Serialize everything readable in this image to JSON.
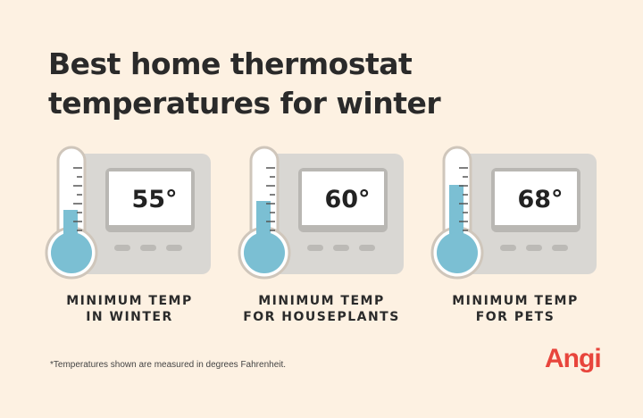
{
  "title_line1": "Best home thermostat",
  "title_line2": "temperatures for winter",
  "cards": [
    {
      "temperature": "55°",
      "label_line1": "MINIMUM TEMP",
      "label_line2": "IN WINTER",
      "fill_level": 0.4
    },
    {
      "temperature": "60°",
      "label_line1": "MINIMUM TEMP",
      "label_line2": "FOR HOUSEPLANTS",
      "fill_level": 0.5
    },
    {
      "temperature": "68°",
      "label_line1": "MINIMUM TEMP",
      "label_line2": "FOR PETS",
      "fill_level": 0.68
    }
  ],
  "footnote": "*Temperatures shown are measured in degrees Fahrenheit.",
  "logo": "Angi",
  "colors": {
    "background": "#fdf1e2",
    "mercury": "#7bbfd3",
    "thermostat": "#d8d6d2",
    "brand": "#e8453c"
  }
}
